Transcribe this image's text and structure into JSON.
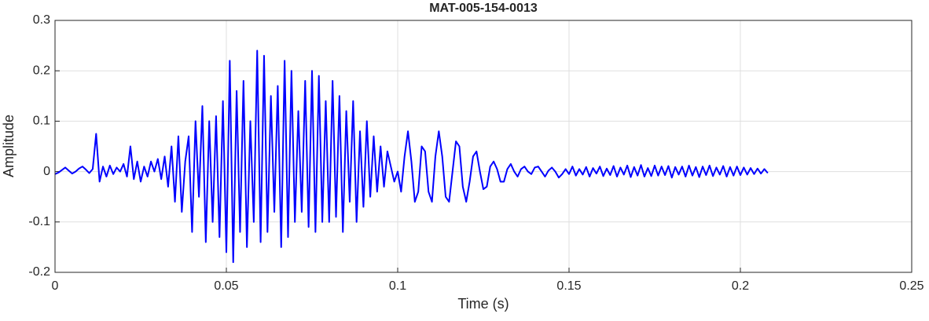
{
  "chart_data": {
    "type": "line",
    "title": "MAT-005-154-0013",
    "x_label": "Time (s)",
    "y_label": "Amplitude",
    "xlim": [
      0,
      0.25
    ],
    "ylim": [
      -0.2,
      0.3
    ],
    "xticks": [
      0,
      0.05,
      0.1,
      0.15,
      0.2,
      0.25
    ],
    "yticks": [
      -0.2,
      -0.1,
      0,
      0.1,
      0.2,
      0.3
    ],
    "grid": true,
    "x": [
      0,
      0.001,
      0.002,
      0.003,
      0.004,
      0.005,
      0.006,
      0.007,
      0.008,
      0.009,
      0.01,
      0.011,
      0.012,
      0.013,
      0.014,
      0.015,
      0.016,
      0.017,
      0.018,
      0.019,
      0.02,
      0.021,
      0.022,
      0.023,
      0.024,
      0.025,
      0.026,
      0.027,
      0.028,
      0.029,
      0.03,
      0.031,
      0.032,
      0.033,
      0.034,
      0.035,
      0.036,
      0.037,
      0.038,
      0.039,
      0.04,
      0.041,
      0.042,
      0.043,
      0.044,
      0.045,
      0.046,
      0.047,
      0.048,
      0.049,
      0.05,
      0.051,
      0.052,
      0.053,
      0.054,
      0.055,
      0.056,
      0.057,
      0.058,
      0.059,
      0.06,
      0.061,
      0.062,
      0.063,
      0.064,
      0.065,
      0.066,
      0.067,
      0.068,
      0.069,
      0.07,
      0.071,
      0.072,
      0.073,
      0.074,
      0.075,
      0.076,
      0.077,
      0.078,
      0.079,
      0.08,
      0.081,
      0.082,
      0.083,
      0.084,
      0.085,
      0.086,
      0.087,
      0.088,
      0.089,
      0.09,
      0.091,
      0.092,
      0.093,
      0.094,
      0.095,
      0.096,
      0.097,
      0.098,
      0.099,
      0.1,
      0.101,
      0.102,
      0.103,
      0.104,
      0.105,
      0.106,
      0.107,
      0.108,
      0.109,
      0.11,
      0.111,
      0.112,
      0.113,
      0.114,
      0.115,
      0.116,
      0.117,
      0.118,
      0.119,
      0.12,
      0.121,
      0.122,
      0.123,
      0.124,
      0.125,
      0.126,
      0.127,
      0.128,
      0.129,
      0.13,
      0.131,
      0.132,
      0.133,
      0.134,
      0.135,
      0.136,
      0.137,
      0.138,
      0.139,
      0.14,
      0.141,
      0.142,
      0.143,
      0.144,
      0.145,
      0.146,
      0.147,
      0.148,
      0.149,
      0.15,
      0.151,
      0.152,
      0.153,
      0.154,
      0.155,
      0.156,
      0.157,
      0.158,
      0.159,
      0.16,
      0.161,
      0.162,
      0.163,
      0.164,
      0.165,
      0.166,
      0.167,
      0.168,
      0.169,
      0.17,
      0.171,
      0.172,
      0.173,
      0.174,
      0.175,
      0.176,
      0.177,
      0.178,
      0.179,
      0.18,
      0.181,
      0.182,
      0.183,
      0.184,
      0.185,
      0.186,
      0.187,
      0.188,
      0.189,
      0.19,
      0.191,
      0.192,
      0.193,
      0.194,
      0.195,
      0.196,
      0.197,
      0.198,
      0.199,
      0.2,
      0.201,
      0.202,
      0.203,
      0.204,
      0.205,
      0.206,
      0.207,
      0.208
    ],
    "series": [
      {
        "color": "#0000ff",
        "values": [
          -0.005,
          -0.002,
          0.003,
          0.008,
          0.002,
          -0.004,
          0,
          0.006,
          0.01,
          0.004,
          -0.003,
          0.005,
          0.075,
          -0.02,
          0.01,
          -0.01,
          0.012,
          -0.005,
          0.008,
          0,
          0.015,
          -0.01,
          0.05,
          -0.015,
          0.02,
          -0.02,
          0.01,
          -0.01,
          0.02,
          0,
          0.025,
          -0.015,
          0.03,
          -0.03,
          0.05,
          -0.06,
          0.07,
          -0.08,
          0.02,
          0.07,
          -0.12,
          0.1,
          -0.05,
          0.13,
          -0.14,
          0.1,
          -0.1,
          0.11,
          -0.13,
          0.14,
          -0.16,
          0.22,
          -0.18,
          0.16,
          -0.12,
          0.18,
          -0.15,
          0.1,
          -0.1,
          0.24,
          -0.14,
          0.23,
          -0.12,
          0.15,
          -0.08,
          0.17,
          -0.15,
          0.22,
          -0.13,
          0.2,
          -0.1,
          0.12,
          -0.08,
          0.18,
          -0.11,
          0.2,
          -0.12,
          0.19,
          -0.1,
          0.14,
          -0.1,
          0.18,
          -0.09,
          0.15,
          -0.12,
          0.12,
          -0.06,
          0.14,
          -0.1,
          0.08,
          -0.07,
          0.1,
          -0.05,
          0.07,
          -0.04,
          0.05,
          -0.03,
          0.04,
          0.01,
          -0.02,
          0,
          -0.04,
          0.03,
          0.08,
          0.02,
          -0.06,
          -0.04,
          0.05,
          0.04,
          -0.04,
          -0.06,
          0.03,
          0.08,
          0.03,
          -0.05,
          -0.06,
          0,
          0.06,
          0.05,
          -0.03,
          -0.06,
          -0.02,
          0.03,
          0.04,
          0,
          -0.035,
          -0.03,
          0.01,
          0.02,
          0.005,
          -0.02,
          -0.02,
          0.005,
          0.015,
          0,
          -0.01,
          0.005,
          0.01,
          0,
          -0.005,
          0.008,
          0.01,
          0,
          -0.01,
          0.002,
          0.008,
          0,
          -0.012,
          -0.005,
          0.005,
          -0.005,
          0.01,
          -0.008,
          0.005,
          -0.006,
          0.009,
          -0.01,
          0.007,
          -0.004,
          0.01,
          -0.009,
          0.006,
          -0.007,
          0.011,
          -0.01,
          0.008,
          -0.006,
          0.012,
          -0.011,
          0.009,
          -0.008,
          0.013,
          -0.01,
          0.007,
          -0.009,
          0.012,
          -0.008,
          0.01,
          -0.007,
          0.011,
          -0.012,
          0.009,
          -0.006,
          0.01,
          -0.01,
          0.012,
          -0.008,
          0.009,
          -0.011,
          0.01,
          -0.007,
          0.012,
          -0.009,
          0.008,
          -0.006,
          0.011,
          -0.01,
          0.009,
          -0.008,
          0.01,
          -0.007,
          0.008,
          -0.006,
          0.007,
          -0.005,
          0.006,
          -0.004,
          0.005,
          -0.003
        ]
      }
    ]
  }
}
